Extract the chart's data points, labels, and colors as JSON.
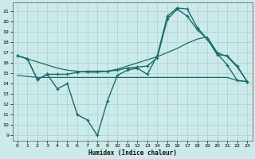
{
  "xlabel": "Humidex (Indice chaleur)",
  "xlim": [
    -0.5,
    23.5
  ],
  "ylim": [
    8.5,
    21.8
  ],
  "yticks": [
    9,
    10,
    11,
    12,
    13,
    14,
    15,
    16,
    17,
    18,
    19,
    20,
    21
  ],
  "xticks": [
    0,
    1,
    2,
    3,
    4,
    5,
    6,
    7,
    8,
    9,
    10,
    11,
    12,
    13,
    14,
    15,
    16,
    17,
    18,
    19,
    20,
    21,
    22,
    23
  ],
  "bg_color": "#cdeaea",
  "grid_color": "#b0d8d8",
  "line_color": "#1a6b6b",
  "series": [
    {
      "x": [
        0,
        1,
        2,
        3,
        4,
        5,
        6,
        7,
        8,
        9,
        10,
        11,
        12,
        13,
        14,
        15,
        16,
        17,
        18,
        19,
        20,
        21,
        22,
        23
      ],
      "y": [
        16.7,
        16.4,
        14.4,
        14.9,
        13.5,
        14.0,
        11.0,
        10.5,
        9.0,
        12.3,
        14.8,
        15.3,
        15.5,
        14.9,
        16.7,
        20.5,
        21.3,
        21.2,
        19.4,
        18.3,
        16.8,
        16.7,
        15.7,
        14.2
      ],
      "marker": true,
      "lw": 1.0
    },
    {
      "x": [
        0,
        1,
        2,
        3,
        4,
        5,
        6,
        7,
        8,
        9,
        10,
        11,
        12,
        13,
        14,
        15,
        16,
        17,
        18,
        19,
        20,
        21,
        22,
        23
      ],
      "y": [
        16.7,
        16.4,
        14.4,
        14.9,
        14.9,
        14.9,
        15.1,
        15.2,
        15.2,
        15.2,
        15.3,
        15.5,
        15.6,
        15.7,
        16.5,
        20.2,
        21.2,
        20.5,
        19.2,
        18.3,
        16.9,
        15.8,
        14.3,
        14.2
      ],
      "marker": true,
      "lw": 1.0
    },
    {
      "x": [
        0,
        1,
        2,
        3,
        4,
        5,
        6,
        7,
        8,
        9,
        10,
        11,
        12,
        13,
        14,
        15,
        16,
        17,
        18,
        19,
        20,
        21,
        22,
        23
      ],
      "y": [
        14.8,
        14.7,
        14.6,
        14.6,
        14.6,
        14.6,
        14.6,
        14.6,
        14.6,
        14.6,
        14.6,
        14.6,
        14.6,
        14.6,
        14.6,
        14.6,
        14.6,
        14.6,
        14.6,
        14.6,
        14.6,
        14.6,
        14.3,
        14.2
      ],
      "marker": false,
      "lw": 0.9
    },
    {
      "x": [
        0,
        1,
        2,
        3,
        4,
        5,
        6,
        7,
        8,
        9,
        10,
        11,
        12,
        13,
        14,
        15,
        16,
        17,
        18,
        19,
        20,
        21,
        22,
        23
      ],
      "y": [
        16.7,
        16.4,
        16.1,
        15.8,
        15.5,
        15.3,
        15.2,
        15.1,
        15.1,
        15.2,
        15.4,
        15.7,
        16.0,
        16.3,
        16.6,
        17.0,
        17.4,
        17.9,
        18.3,
        18.5,
        17.0,
        16.6,
        15.6,
        14.2
      ],
      "marker": false,
      "lw": 0.9
    }
  ]
}
